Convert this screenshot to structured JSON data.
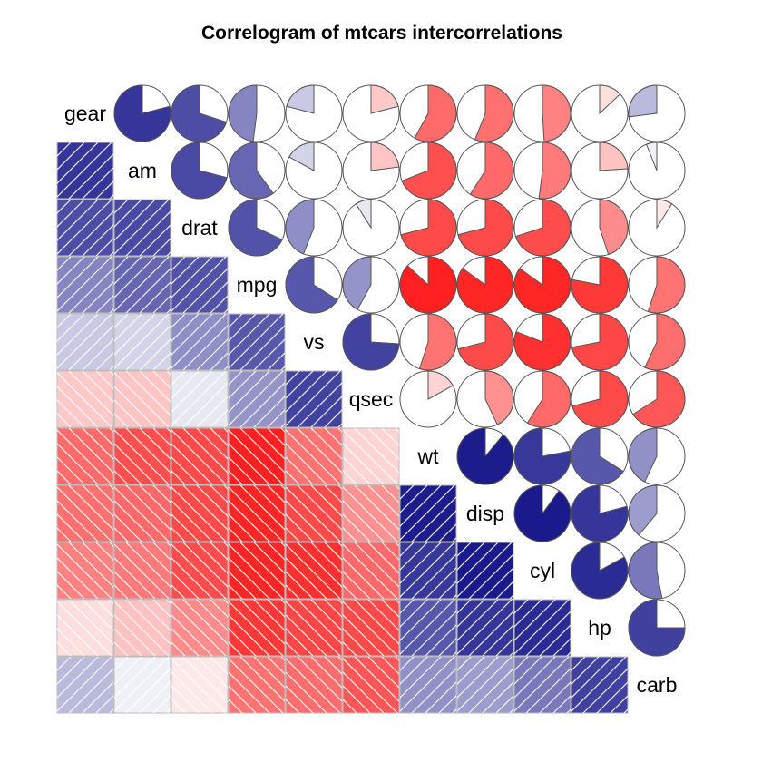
{
  "chart_data": {
    "type": "heatmap",
    "title": "Correlogram of mtcars intercorrelations",
    "variables": [
      "gear",
      "am",
      "drat",
      "mpg",
      "vs",
      "qsec",
      "wt",
      "disp",
      "cyl",
      "hp",
      "carb"
    ],
    "lower_panel": "shade",
    "upper_panel": "pie",
    "diagonal_panel": "labels",
    "color_scale": {
      "negative": "#ff0000",
      "zero": "#ffffff",
      "positive": "#00007f"
    },
    "matrix": [
      [
        1.0,
        0.79,
        0.7,
        0.48,
        0.21,
        -0.21,
        -0.58,
        -0.56,
        -0.49,
        -0.13,
        0.27
      ],
      [
        0.79,
        1.0,
        0.71,
        0.6,
        0.17,
        -0.23,
        -0.69,
        -0.59,
        -0.52,
        -0.24,
        0.06
      ],
      [
        0.7,
        0.71,
        1.0,
        0.68,
        0.44,
        0.09,
        -0.71,
        -0.71,
        -0.7,
        -0.45,
        -0.09
      ],
      [
        0.48,
        0.6,
        0.68,
        1.0,
        0.66,
        0.42,
        -0.87,
        -0.85,
        -0.85,
        -0.78,
        -0.55
      ],
      [
        0.21,
        0.17,
        0.44,
        0.66,
        1.0,
        0.74,
        -0.55,
        -0.71,
        -0.81,
        -0.72,
        -0.57
      ],
      [
        -0.21,
        -0.23,
        0.09,
        0.42,
        0.74,
        1.0,
        -0.17,
        -0.43,
        -0.59,
        -0.71,
        -0.66
      ],
      [
        -0.58,
        -0.69,
        -0.71,
        -0.87,
        -0.55,
        -0.17,
        1.0,
        0.89,
        0.78,
        0.66,
        0.43
      ],
      [
        -0.56,
        -0.59,
        -0.71,
        -0.85,
        -0.71,
        -0.43,
        0.89,
        1.0,
        0.9,
        0.79,
        0.39
      ],
      [
        -0.49,
        -0.52,
        -0.7,
        -0.85,
        -0.81,
        -0.59,
        0.78,
        0.9,
        1.0,
        0.83,
        0.53
      ],
      [
        -0.13,
        -0.24,
        -0.45,
        -0.78,
        -0.72,
        -0.71,
        0.66,
        0.79,
        0.83,
        1.0,
        0.75
      ],
      [
        0.27,
        0.06,
        -0.09,
        -0.55,
        -0.57,
        -0.66,
        0.43,
        0.39,
        0.53,
        0.75,
        1.0
      ]
    ]
  }
}
